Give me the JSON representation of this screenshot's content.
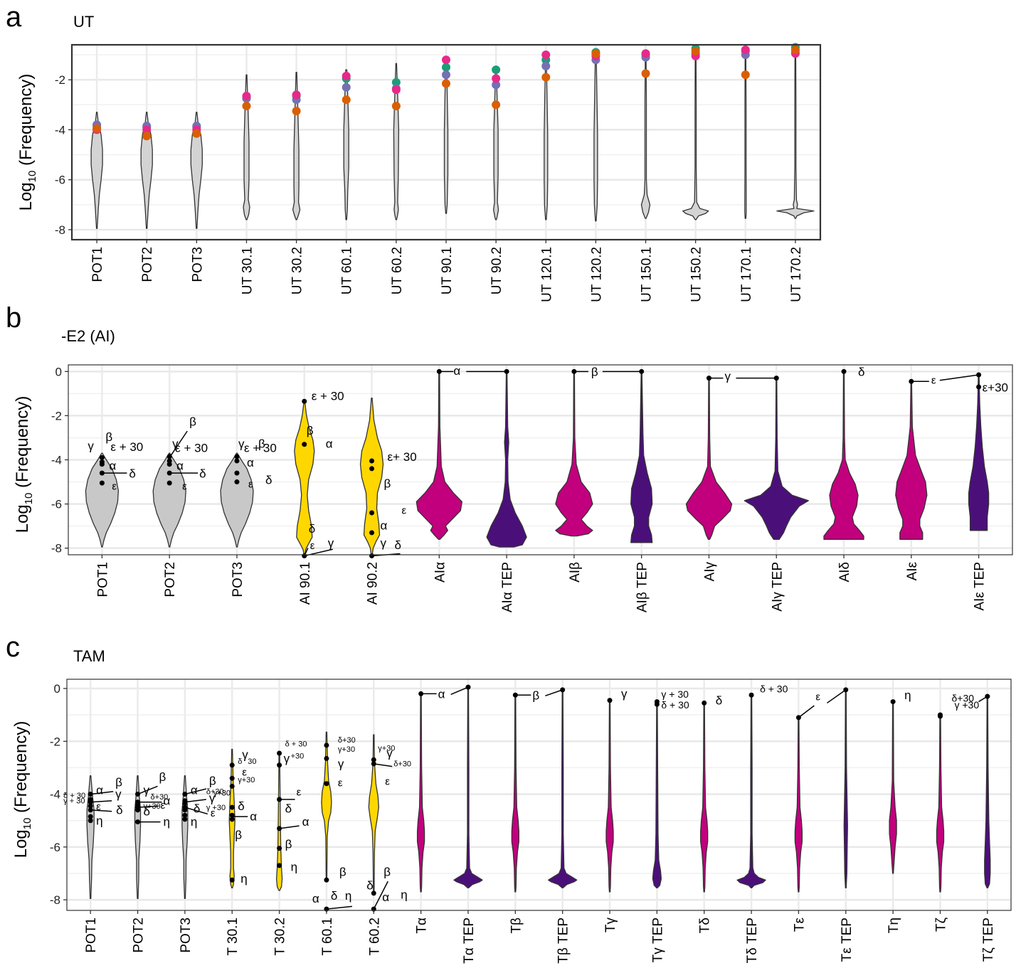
{
  "chart_data": [
    {
      "panel": "a",
      "title": "UT",
      "type": "violin",
      "ylabel": "Log10 (Frequency)",
      "ylim": [
        -8.4,
        -0.6
      ],
      "yticks": [
        -8,
        -6,
        -4,
        -2
      ],
      "categories": [
        "POT1",
        "POT2",
        "POT3",
        "UT 30.1",
        "UT 30.2",
        "UT 60.1",
        "UT 60.2",
        "UT 90.1",
        "UT 90.2",
        "UT 120.1",
        "UT 120.2",
        "UT 150.1",
        "UT 150.2",
        "UT 170.1",
        "UT 170.2"
      ],
      "colors": {
        "violin_fill": "#d3d3d3",
        "teal": "#1b9e77",
        "orange": "#d95f02",
        "purple": "#7570b3",
        "pink": "#e7298a"
      },
      "series": [
        {
          "color_key": "teal",
          "values": [
            -3.85,
            -3.9,
            -3.9,
            -2.7,
            -2.65,
            -1.95,
            -2.1,
            -1.5,
            -1.6,
            -1.2,
            -0.9,
            -1.0,
            -0.75,
            -0.85,
            -0.7
          ]
        },
        {
          "color_key": "purple",
          "values": [
            -3.8,
            -3.85,
            -3.85,
            -2.75,
            -2.8,
            -2.3,
            -2.35,
            -1.8,
            -2.2,
            -1.45,
            -1.2,
            -1.1,
            -0.95,
            -1.0,
            -0.85
          ]
        },
        {
          "color_key": "pink",
          "values": [
            -4.0,
            -4.0,
            -4.0,
            -2.65,
            -2.6,
            -1.85,
            -2.4,
            -1.2,
            -1.95,
            -1.0,
            -1.05,
            -0.95,
            -1.05,
            -0.8,
            -0.95
          ]
        },
        {
          "color_key": "orange",
          "values": [
            -3.95,
            -4.25,
            -4.15,
            -3.05,
            -3.25,
            -2.8,
            -3.05,
            -2.15,
            -3.0,
            -1.9,
            -0.95,
            -1.75,
            -0.85,
            -1.8,
            -0.8
          ]
        }
      ]
    },
    {
      "panel": "b",
      "title": "-E2 (AI)",
      "type": "violin",
      "ylabel": "Log10 (Frequency)",
      "ylim": [
        -8.3,
        0.3
      ],
      "yticks": [
        -8,
        -6,
        -4,
        -2,
        0
      ],
      "categories": [
        "POT1",
        "POT2",
        "POT3",
        "AI 90.1",
        "AI 90.2",
        "AIα",
        "AIα TEP",
        "AIβ",
        "AIβ TEP",
        "AIγ",
        "AIγ TEP",
        "AIδ",
        "AIε",
        "AIε TEP"
      ],
      "colors": {
        "grey": "#c8c8c8",
        "yellow": "#ffd700",
        "magenta": "#c2007e",
        "indigo": "#4b0f7a"
      },
      "labels": [
        "α",
        "β",
        "γ",
        "δ",
        "ε",
        "ε + 30",
        "ε+30"
      ]
    },
    {
      "panel": "c",
      "title": "TAM",
      "type": "violin",
      "ylabel": "Log10 (Frequency)",
      "ylim": [
        -8.4,
        0.35
      ],
      "yticks": [
        -8,
        -6,
        -4,
        -2,
        0
      ],
      "categories": [
        "POT1",
        "POT2",
        "POT3",
        "T 30.1",
        "T 30.2",
        "T 60.1",
        "T 60.2",
        "Tα",
        "Tα TEP",
        "Tβ",
        "Tβ TEP",
        "Tγ",
        "Tγ TEP",
        "Tδ",
        "Tδ TEP",
        "Tε",
        "Tε TEP",
        "Tη",
        "Tζ",
        "Tζ TEP"
      ],
      "colors": {
        "grey": "#c8c8c8",
        "yellow": "#ffd700",
        "magenta": "#c2007e",
        "indigo": "#4b0f7a"
      },
      "labels": [
        "α",
        "β",
        "γ",
        "δ",
        "ε",
        "η",
        "δ+30",
        "γ+30",
        "γ + 30",
        "δ + 30",
        "δ+ 30"
      ]
    }
  ],
  "panels": {
    "a": {
      "letter": "a",
      "title": "UT"
    },
    "b": {
      "letter": "b",
      "title": "-E2 (AI)"
    },
    "c": {
      "letter": "c",
      "title": "TAM"
    }
  }
}
